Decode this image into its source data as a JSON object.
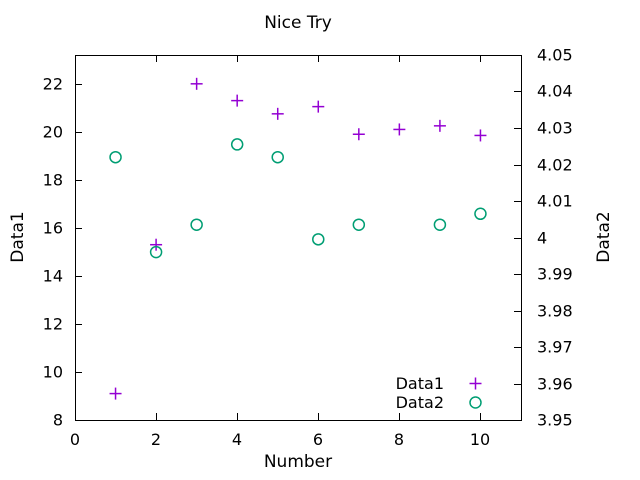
{
  "chart_data": {
    "type": "scatter",
    "title": "Nice Try",
    "xlabel": "Number",
    "ylabel_left": "Data1",
    "ylabel_right": "Data2",
    "xlim": [
      0,
      11
    ],
    "ylim_left": [
      8,
      23.2
    ],
    "ylim_right": [
      3.95,
      4.05
    ],
    "grid": false,
    "background_color": "#ffffff",
    "axis_color": "#000000",
    "legend_position": "inside-bottom-right",
    "x_ticks": {
      "values": [
        0,
        2,
        4,
        6,
        8,
        10
      ],
      "labels": [
        "0",
        "2",
        "4",
        "6",
        "8",
        "10"
      ]
    },
    "y1_ticks": {
      "values": [
        8,
        10,
        12,
        14,
        16,
        18,
        20,
        22
      ],
      "labels": [
        "8",
        "10",
        "12",
        "14",
        "16",
        "18",
        "20",
        "22"
      ]
    },
    "y2_ticks": {
      "values": [
        3.95,
        3.96,
        3.97,
        3.98,
        3.99,
        4.0,
        4.01,
        4.02,
        4.03,
        4.04,
        4.05
      ],
      "labels": [
        "3.95",
        "3.96",
        "3.97",
        "3.98",
        "3.99",
        "4",
        "4.01",
        "4.02",
        "4.03",
        "4.04",
        "4.05"
      ]
    },
    "series": [
      {
        "name": "Data1",
        "axis": "left",
        "marker": "plus",
        "color": "#9400D3",
        "x": [
          1,
          2,
          3,
          4,
          5,
          6,
          7,
          8,
          9,
          10
        ],
        "y": [
          9.1,
          15.3,
          22.0,
          21.3,
          20.75,
          21.05,
          19.9,
          20.1,
          20.25,
          19.85
        ]
      },
      {
        "name": "Data2",
        "axis": "right",
        "marker": "circle",
        "color": "#009E73",
        "x": [
          1,
          2,
          3,
          4,
          5,
          6,
          7,
          9,
          10
        ],
        "y": [
          4.022,
          3.996,
          4.0035,
          4.0255,
          4.022,
          3.9995,
          4.0035,
          4.0035,
          4.0065
        ]
      }
    ],
    "legend_items": [
      "Data1",
      "Data2"
    ]
  }
}
